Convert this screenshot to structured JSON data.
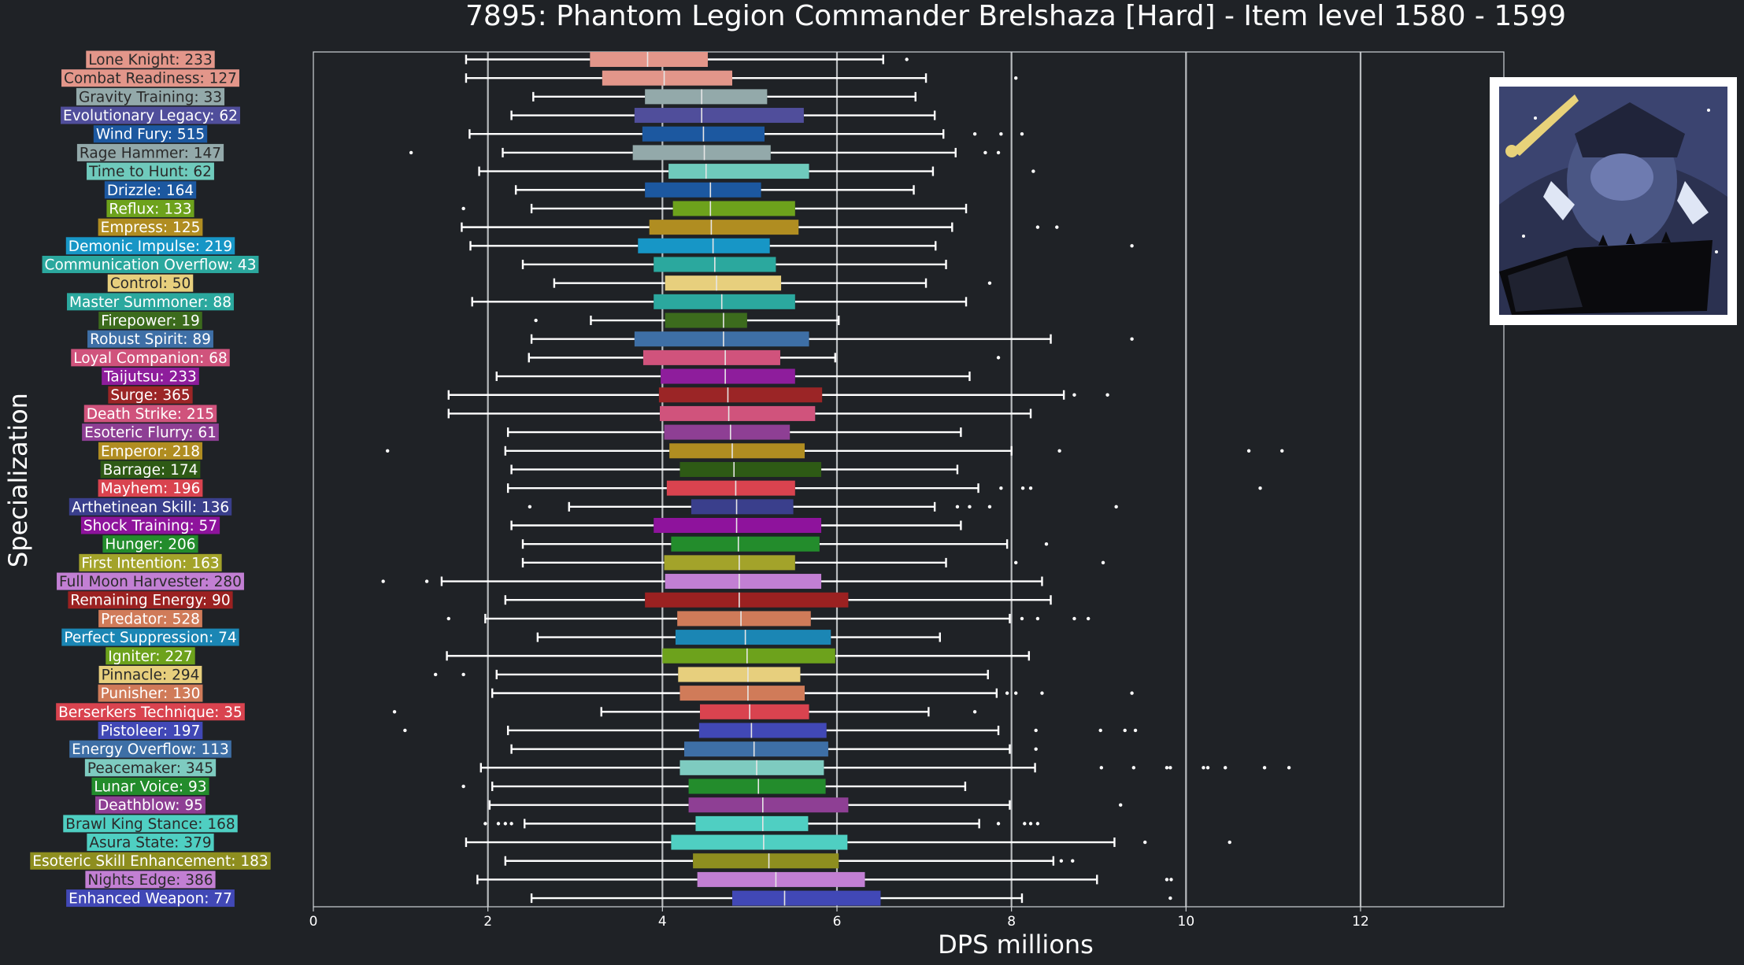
{
  "chart_data": {
    "type": "box",
    "title": "7895: Phantom Legion Commander Brelshaza [Hard] - Item level 1580 - 1599",
    "xlabel": "DPS millions",
    "ylabel": "Specialization",
    "xlim": [
      0,
      13.4
    ],
    "xticks": [
      0,
      2,
      4,
      6,
      8,
      10,
      12
    ],
    "xtick_labels": [
      "0",
      "2",
      "4",
      "6",
      "8",
      "10",
      "12"
    ],
    "grid": "vertical",
    "image": "boss-portrait",
    "series": [
      {
        "label": "Lone Knight: 233",
        "color": "#e3968a",
        "stats": [
          1.75,
          3.17,
          3.83,
          4.52,
          6.53
        ],
        "outliers": [
          6.8
        ]
      },
      {
        "label": "Combat Readiness: 127",
        "color": "#e3968a",
        "stats": [
          1.75,
          3.31,
          4.02,
          4.8,
          7.02
        ],
        "outliers": [
          8.05
        ]
      },
      {
        "label": "Gravity Training: 33",
        "color": "#93a9aa",
        "stats": [
          2.52,
          3.8,
          4.45,
          5.2,
          6.9
        ],
        "outliers": []
      },
      {
        "label": "Evolutionary Legacy: 62",
        "color": "#504e9b",
        "stats": [
          2.27,
          3.68,
          4.45,
          5.62,
          7.12
        ],
        "outliers": []
      },
      {
        "label": "Wind Fury: 515",
        "color": "#1c58a0",
        "stats": [
          1.79,
          3.77,
          4.47,
          5.17,
          7.22
        ],
        "outliers": [
          7.58,
          7.88,
          8.12
        ]
      },
      {
        "label": "Rage Hammer: 147",
        "color": "#93a9aa",
        "stats": [
          2.17,
          3.66,
          4.48,
          5.24,
          7.36
        ],
        "outliers": [
          1.12,
          7.7,
          7.85
        ]
      },
      {
        "label": "Time to Hunt: 62",
        "color": "#6fcabc",
        "stats": [
          1.9,
          4.07,
          4.5,
          5.68,
          7.1
        ],
        "outliers": [
          8.25
        ]
      },
      {
        "label": "Drizzle: 164",
        "color": "#1c58a0",
        "stats": [
          2.32,
          3.8,
          4.55,
          5.13,
          6.88
        ],
        "outliers": []
      },
      {
        "label": "Reflux: 133",
        "color": "#6da21c",
        "stats": [
          2.5,
          4.12,
          4.55,
          5.52,
          7.48
        ],
        "outliers": [
          1.72
        ]
      },
      {
        "label": "Empress: 125",
        "color": "#b08d21",
        "stats": [
          1.7,
          3.85,
          4.56,
          5.56,
          7.32
        ],
        "outliers": [
          8.3,
          8.52
        ]
      },
      {
        "label": "Demonic Impulse: 219",
        "color": "#1796c6",
        "stats": [
          1.8,
          3.72,
          4.58,
          5.23,
          7.13
        ],
        "outliers": [
          9.38
        ]
      },
      {
        "label": "Communication Overflow: 43",
        "color": "#2ba89e",
        "stats": [
          2.4,
          3.9,
          4.6,
          5.3,
          7.25
        ],
        "outliers": []
      },
      {
        "label": "Control: 50",
        "color": "#e7cf7d",
        "stats": [
          2.76,
          4.03,
          4.62,
          5.36,
          7.02
        ],
        "outliers": [
          7.75
        ]
      },
      {
        "label": "Master Summoner: 88",
        "color": "#2ba89e",
        "stats": [
          1.82,
          3.9,
          4.68,
          5.52,
          7.48
        ],
        "outliers": []
      },
      {
        "label": "Firepower: 19",
        "color": "#3c6b1d",
        "stats": [
          3.18,
          4.03,
          4.7,
          4.97,
          6.02
        ],
        "outliers": [
          2.55
        ]
      },
      {
        "label": "Robust Spirit: 89",
        "color": "#3e6fa6",
        "stats": [
          2.5,
          3.68,
          4.7,
          5.68,
          8.45
        ],
        "outliers": [
          9.38
        ]
      },
      {
        "label": "Loyal Companion: 68",
        "color": "#d0537c",
        "stats": [
          2.47,
          3.78,
          4.72,
          5.35,
          5.98
        ],
        "outliers": [
          7.85
        ]
      },
      {
        "label": "Taijutsu: 233",
        "color": "#8e1d9c",
        "stats": [
          2.1,
          3.98,
          4.72,
          5.52,
          7.52
        ],
        "outliers": []
      },
      {
        "label": "Surge: 365",
        "color": "#9b2526",
        "stats": [
          1.55,
          3.96,
          4.75,
          5.83,
          8.6
        ],
        "outliers": [
          8.72,
          9.1
        ]
      },
      {
        "label": "Death Strike: 215",
        "color": "#d0537c",
        "stats": [
          1.55,
          3.97,
          4.76,
          5.75,
          8.22
        ],
        "outliers": []
      },
      {
        "label": "Esoteric Flurry: 61",
        "color": "#8e3f94",
        "stats": [
          2.23,
          4.02,
          4.78,
          5.46,
          7.42
        ],
        "outliers": []
      },
      {
        "label": "Emperor: 218",
        "color": "#b08d21",
        "stats": [
          2.2,
          4.08,
          4.8,
          5.63,
          8.0
        ],
        "outliers": [
          0.85,
          8.55,
          10.72,
          11.1
        ]
      },
      {
        "label": "Barrage: 174",
        "color": "#2e5a15",
        "stats": [
          2.27,
          4.2,
          4.82,
          5.82,
          7.38
        ],
        "outliers": []
      },
      {
        "label": "Mayhem: 196",
        "color": "#d9434f",
        "stats": [
          2.23,
          4.05,
          4.84,
          5.52,
          7.62
        ],
        "outliers": [
          7.88,
          8.13,
          8.22,
          10.85
        ]
      },
      {
        "label": "Arthetinean Skill: 136",
        "color": "#3a3f8c",
        "stats": [
          2.93,
          4.33,
          4.85,
          5.5,
          7.12
        ],
        "outliers": [
          2.48,
          7.38,
          7.52,
          7.75,
          9.2
        ]
      },
      {
        "label": "Shock Training: 57",
        "color": "#8e139c",
        "stats": [
          2.27,
          3.9,
          4.85,
          5.82,
          7.42
        ],
        "outliers": []
      },
      {
        "label": "Hunger: 206",
        "color": "#238c2c",
        "stats": [
          2.4,
          4.1,
          4.87,
          5.8,
          7.95
        ],
        "outliers": [
          8.4
        ]
      },
      {
        "label": "First Intention: 163",
        "color": "#a3a32a",
        "stats": [
          2.4,
          4.02,
          4.88,
          5.52,
          7.25
        ],
        "outliers": [
          8.05,
          9.05
        ]
      },
      {
        "label": "Full Moon Harvester: 280",
        "color": "#c27fd3",
        "stats": [
          1.47,
          4.03,
          4.88,
          5.82,
          8.35
        ],
        "outliers": [
          0.8,
          1.3
        ]
      },
      {
        "label": "Remaining Energy: 90",
        "color": "#9b2121",
        "stats": [
          2.2,
          3.8,
          4.88,
          6.13,
          8.45
        ],
        "outliers": []
      },
      {
        "label": "Predator: 528",
        "color": "#d07b59",
        "stats": [
          1.97,
          4.17,
          4.9,
          5.7,
          7.98
        ],
        "outliers": [
          1.55,
          8.12,
          8.3,
          8.72,
          8.88
        ]
      },
      {
        "label": "Perfect Suppression: 74",
        "color": "#1b86b4",
        "stats": [
          2.57,
          4.15,
          4.95,
          5.93,
          7.18
        ],
        "outliers": []
      },
      {
        "label": "Igniter: 227",
        "color": "#6da21c",
        "stats": [
          1.53,
          4.0,
          4.97,
          5.98,
          8.2
        ],
        "outliers": []
      },
      {
        "label": "Pinnacle: 294",
        "color": "#e7cf7d",
        "stats": [
          2.1,
          4.18,
          4.98,
          5.58,
          7.73
        ],
        "outliers": [
          1.4,
          1.72
        ]
      },
      {
        "label": "Punisher: 130",
        "color": "#d07b59",
        "stats": [
          2.05,
          4.2,
          4.98,
          5.63,
          7.83
        ],
        "outliers": [
          7.95,
          8.05,
          8.35,
          9.38
        ]
      },
      {
        "label": "Berserkers Technique: 35",
        "color": "#d9434f",
        "stats": [
          3.3,
          4.43,
          5.0,
          5.68,
          7.05
        ],
        "outliers": [
          0.93,
          7.58
        ]
      },
      {
        "label": "Pistoleer: 197",
        "color": "#4148b6",
        "stats": [
          2.23,
          4.42,
          5.02,
          5.88,
          7.85
        ],
        "outliers": [
          1.05,
          8.28,
          9.02,
          9.3,
          9.42
        ]
      },
      {
        "label": "Energy Overflow: 113",
        "color": "#3e6fa6",
        "stats": [
          2.27,
          4.25,
          5.05,
          5.9,
          7.98
        ],
        "outliers": [
          8.28
        ]
      },
      {
        "label": "Peacemaker: 345",
        "color": "#7ecbc0",
        "stats": [
          1.92,
          4.2,
          5.08,
          5.85,
          8.27
        ],
        "outliers": [
          9.03,
          9.4,
          9.78,
          9.82,
          10.2,
          10.25,
          10.45,
          10.9,
          11.18
        ]
      },
      {
        "label": "Lunar Voice: 93",
        "color": "#238c2c",
        "stats": [
          2.05,
          4.3,
          5.1,
          5.87,
          7.47
        ],
        "outliers": [
          1.72
        ]
      },
      {
        "label": "Deathblow: 95",
        "color": "#8e3f94",
        "stats": [
          2.02,
          4.3,
          5.15,
          6.13,
          7.98
        ],
        "outliers": [
          9.25
        ]
      },
      {
        "label": "Brawl King Stance: 168",
        "color": "#4fcfc2",
        "stats": [
          2.42,
          4.38,
          5.15,
          5.67,
          7.63
        ],
        "outliers": [
          1.97,
          2.12,
          2.2,
          2.27,
          7.85,
          8.15,
          8.22,
          8.3
        ]
      },
      {
        "label": "Asura State: 379",
        "color": "#4fcfc2",
        "stats": [
          1.75,
          4.1,
          5.16,
          6.12,
          9.18
        ],
        "outliers": [
          9.53,
          10.5
        ]
      },
      {
        "label": "Esoteric Skill Enhancement: 183",
        "color": "#8e8e1f",
        "stats": [
          2.2,
          4.35,
          5.22,
          6.02,
          8.48
        ],
        "outliers": [
          8.57,
          8.7
        ]
      },
      {
        "label": "Nights Edge: 386",
        "color": "#c27fd3",
        "stats": [
          1.88,
          4.4,
          5.3,
          6.32,
          8.98
        ],
        "outliers": [
          9.78,
          9.83
        ]
      },
      {
        "label": "Enhanced Weapon: 77",
        "color": "#4148b6",
        "stats": [
          2.5,
          4.8,
          5.4,
          6.5,
          8.12
        ],
        "outliers": [
          9.82
        ]
      }
    ]
  }
}
